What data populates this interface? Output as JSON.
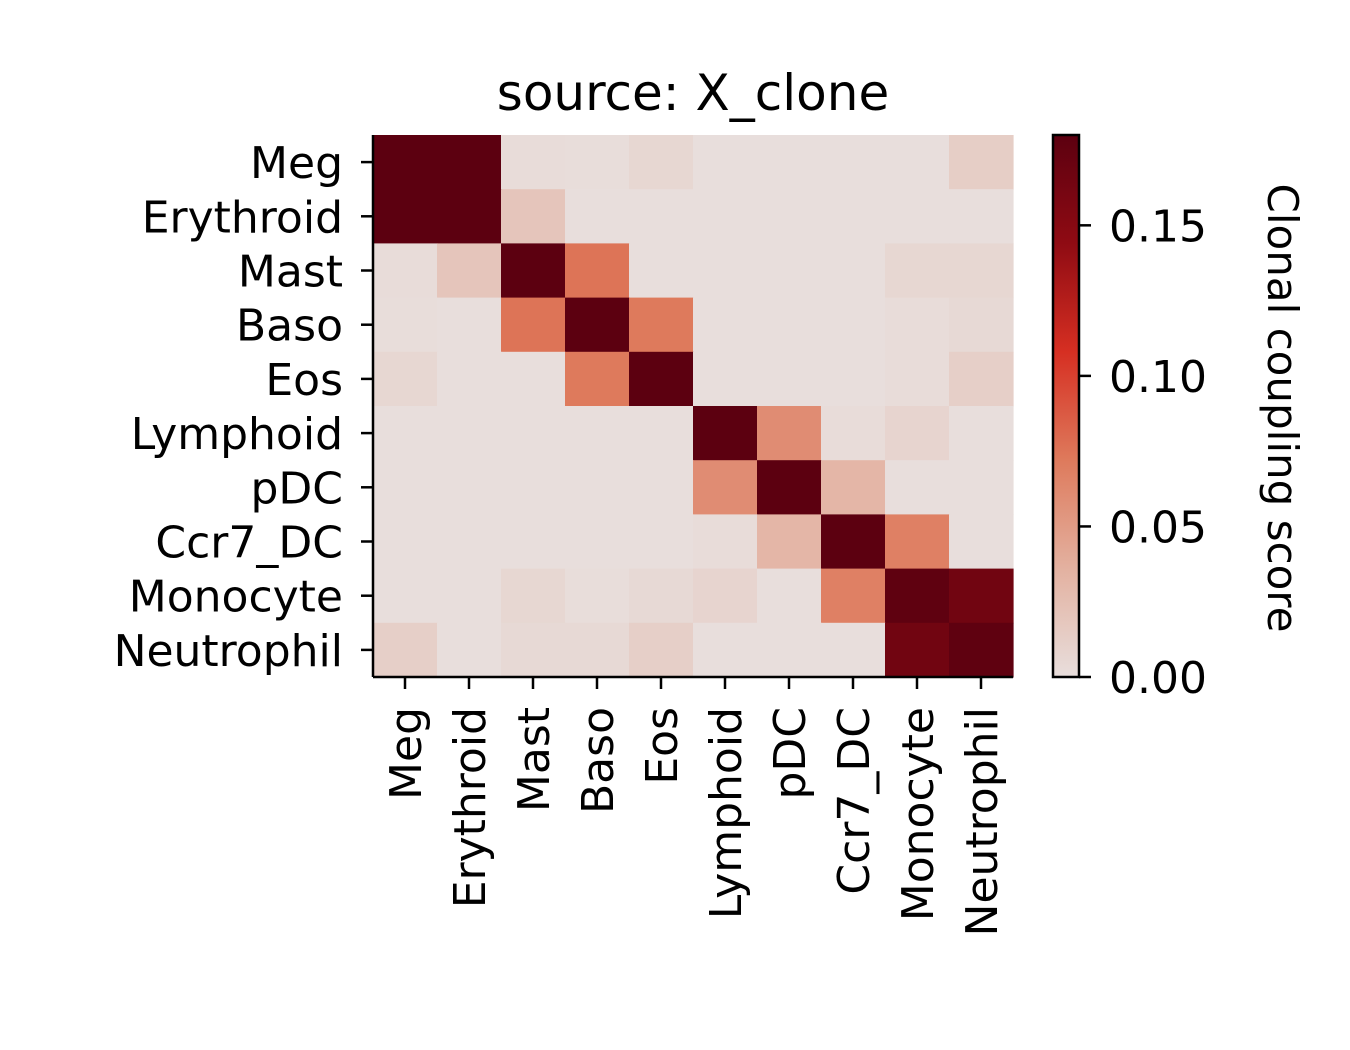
{
  "chart_data": {
    "type": "heatmap",
    "title": "source: X_clone",
    "rows": [
      "Meg",
      "Erythroid",
      "Mast",
      "Baso",
      "Eos",
      "Lymphoid",
      "pDC",
      "Ccr7_DC",
      "Monocyte",
      "Neutrophil"
    ],
    "columns": [
      "Meg",
      "Erythroid",
      "Mast",
      "Baso",
      "Eos",
      "Lymphoid",
      "pDC",
      "Ccr7_DC",
      "Monocyte",
      "Neutrophil"
    ],
    "values": [
      [
        0.18,
        0.18,
        0.002,
        0.001,
        0.006,
        0.0,
        0.0,
        0.0,
        0.0,
        0.013
      ],
      [
        0.18,
        0.18,
        0.02,
        0.0,
        0.0,
        0.0,
        0.0,
        0.0,
        0.0,
        0.0
      ],
      [
        0.002,
        0.02,
        0.18,
        0.075,
        0.0,
        0.0,
        0.0,
        0.0,
        0.006,
        0.006
      ],
      [
        0.001,
        0.0,
        0.075,
        0.18,
        0.072,
        0.0,
        0.0,
        0.0,
        0.002,
        0.004
      ],
      [
        0.006,
        0.0,
        0.0,
        0.072,
        0.18,
        0.0,
        0.0,
        0.0,
        0.002,
        0.012
      ],
      [
        0.0,
        0.0,
        0.0,
        0.0,
        0.0,
        0.18,
        0.06,
        0.002,
        0.008,
        0.0
      ],
      [
        0.0,
        0.0,
        0.0,
        0.0,
        0.0,
        0.06,
        0.18,
        0.032,
        0.0,
        0.0
      ],
      [
        0.0,
        0.0,
        0.0,
        0.0,
        0.0,
        0.002,
        0.032,
        0.18,
        0.068,
        0.0
      ],
      [
        0.0,
        0.0,
        0.006,
        0.001,
        0.004,
        0.008,
        0.0,
        0.068,
        0.178,
        0.165
      ],
      [
        0.012,
        0.0,
        0.004,
        0.004,
        0.012,
        0.0,
        0.0,
        0.0,
        0.165,
        0.178
      ]
    ],
    "colorbar": {
      "label": "Clonal coupling score",
      "range": [
        0,
        0.18
      ],
      "ticks": [
        0.0,
        0.05,
        0.1,
        0.15
      ],
      "tick_labels": [
        "0.00",
        "0.05",
        "0.10",
        "0.15"
      ],
      "colors": [
        "#e8dedc",
        "#e3b1a0",
        "#de7a5c",
        "#d62f22",
        "#8f0b13",
        "#5c0010"
      ]
    }
  }
}
